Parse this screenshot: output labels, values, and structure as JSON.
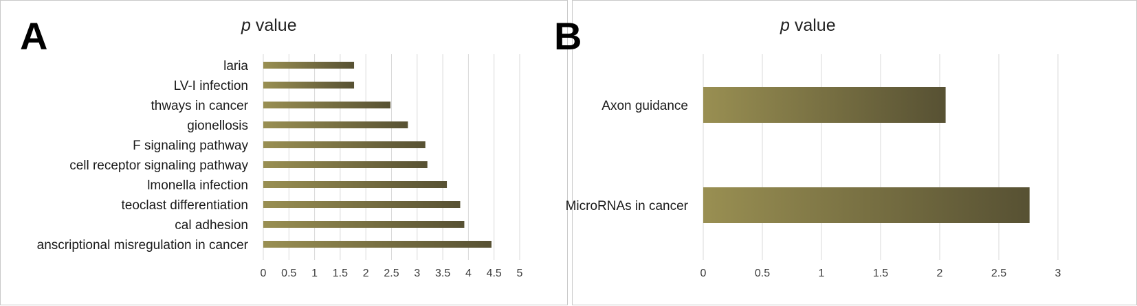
{
  "chart_data": [
    {
      "panel": "A",
      "type": "bar",
      "orientation": "horizontal",
      "title_var": "p",
      "title_rest": " value",
      "categories": [
        "laria",
        "LV-I infection",
        "thways in cancer",
        "gionellosis",
        "F signaling pathway",
        "cell receptor signaling pathway",
        "lmonella infection",
        "teoclast differentiation",
        "cal adhesion",
        "anscriptional misregulation in cancer"
      ],
      "values": [
        1.77,
        1.77,
        2.48,
        2.82,
        3.16,
        3.2,
        3.58,
        3.84,
        3.92,
        4.45
      ],
      "ticks": [
        "0",
        "0.5",
        "1",
        "1.5",
        "2",
        "2.5",
        "3",
        "3.5",
        "4",
        "4.5",
        "5"
      ],
      "xlim": [
        0,
        5
      ],
      "grid": true,
      "legend": "none"
    },
    {
      "panel": "B",
      "type": "bar",
      "orientation": "horizontal",
      "title_var": "p",
      "title_rest": " value",
      "categories": [
        "Axon guidance",
        "MicroRNAs in cancer"
      ],
      "values": [
        2.05,
        2.76
      ],
      "ticks": [
        "0",
        "0.5",
        "1",
        "1.5",
        "2",
        "2.5",
        "3"
      ],
      "xlim": [
        0,
        3
      ],
      "grid": true,
      "legend": "none"
    }
  ],
  "colors": {
    "bar_light": "#998f52",
    "bar_dark": "#575133",
    "grid": "#d9d9d9"
  }
}
